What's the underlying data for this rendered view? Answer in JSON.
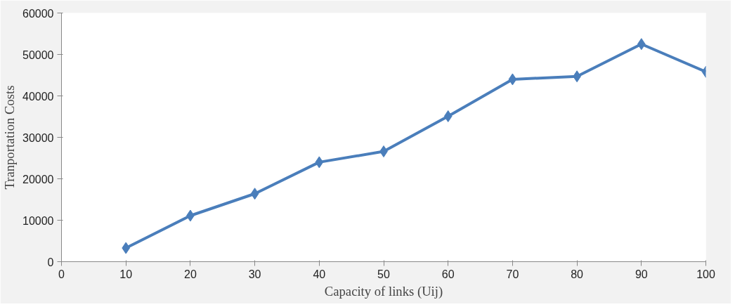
{
  "chart_data": {
    "type": "line",
    "xlabel": "Capacity of links (Uij)",
    "ylabel": "Tranportation Costs",
    "x": [
      10,
      20,
      30,
      40,
      50,
      60,
      70,
      80,
      90,
      100
    ],
    "series": [
      {
        "color": "#4a7ebb",
        "values": [
          3300,
          11100,
          16400,
          24000,
          26600,
          35100,
          44000,
          44700,
          52500,
          45800
        ]
      }
    ],
    "xlim": [
      0,
      100
    ],
    "xticks": [
      0,
      10,
      20,
      30,
      40,
      50,
      60,
      70,
      80,
      90,
      100
    ],
    "ylim": [
      0,
      60000
    ],
    "yticks": [
      0,
      10000,
      20000,
      30000,
      40000,
      50000,
      60000
    ],
    "grid": false,
    "marker": "diamond",
    "line_style": "solid"
  }
}
